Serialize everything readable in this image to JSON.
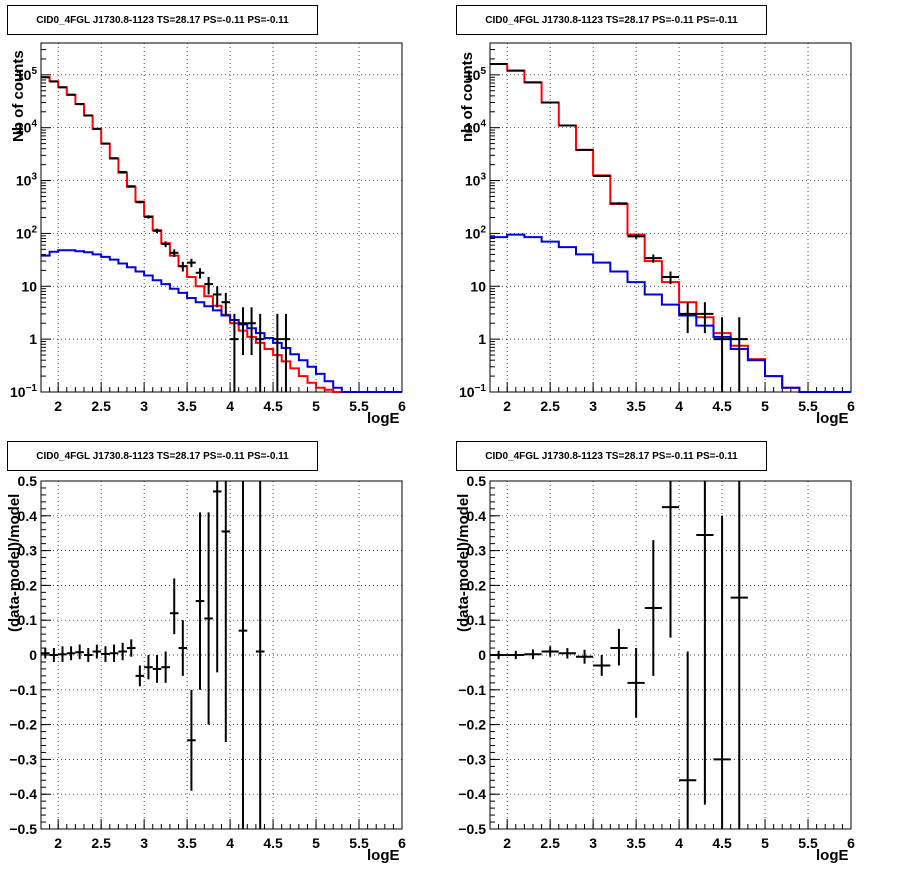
{
  "panels": [
    {
      "title": "CID0_4FGL J1730.8-1123 TS=28.17 PS=-0.11 PS=-0.11",
      "xlabel": "logE",
      "ylabel": "Nb of counts"
    },
    {
      "title": "CID0_4FGL J1730.8-1123 TS=28.17 PS=-0.11 PS=-0.11",
      "xlabel": "logE",
      "ylabel": "nb of counts"
    },
    {
      "title": "CID0_4FGL J1730.8-1123 TS=28.17 PS=-0.11 PS=-0.11",
      "xlabel": "logE",
      "ylabel": "(data-model)/model"
    },
    {
      "title": "CID0_4FGL J1730.8-1123 TS=28.17 PS=-0.11 PS=-0.11",
      "xlabel": "logE",
      "ylabel": "(data-model)/model"
    }
  ],
  "colors": {
    "total_model": "#ff0000",
    "source_model": "#0000dd",
    "data": "#000000"
  },
  "chart_data": [
    {
      "type": "line",
      "title": "CID0_4FGL J1730.8-1123 TS=28.17 PS=-0.11 PS=-0.11",
      "xlabel": "logE",
      "ylabel": "Nb of counts",
      "xlim": [
        1.8,
        6.0
      ],
      "ylim": [
        0.1,
        400000
      ],
      "yscale": "log",
      "grid": true,
      "xticks": [
        "2",
        "2.5",
        "3",
        "3.5",
        "4",
        "4.5",
        "5",
        "5.5",
        "6"
      ],
      "yticks": [
        "10^-1",
        "1",
        "10",
        "10^2",
        "10^3",
        "10^4",
        "10^5"
      ],
      "bin_edges": [
        1.8,
        1.9,
        2.0,
        2.1,
        2.2,
        2.3,
        2.4,
        2.5,
        2.6,
        2.7,
        2.8,
        2.9,
        3.0,
        3.1,
        3.2,
        3.3,
        3.4,
        3.5,
        3.6,
        3.7,
        3.8,
        3.9,
        4.0,
        4.1,
        4.2,
        4.3,
        4.4,
        4.5,
        4.6,
        4.7,
        4.8,
        4.9,
        5.0,
        5.1,
        5.2,
        5.3,
        5.4,
        5.5,
        5.6,
        5.7,
        5.8,
        5.9,
        6.0
      ],
      "series": [
        {
          "style": "step",
          "color": "red",
          "values": [
            90000,
            75000,
            58000,
            42000,
            28000,
            17000,
            9500,
            5000,
            2600,
            1400,
            760,
            400,
            210,
            115,
            65,
            38,
            24,
            15,
            10,
            6.5,
            4.3,
            2.9,
            2.0,
            1.45,
            1.1,
            0.85,
            0.65,
            0.5,
            0.38,
            0.28,
            0.2,
            0.15,
            0.12,
            0.11,
            0.1,
            0.1,
            0.1,
            0.1,
            0.1,
            0.1,
            0.1,
            0.1
          ]
        },
        {
          "style": "step",
          "color": "blue",
          "values": [
            38,
            45,
            48,
            48,
            46,
            44,
            40,
            36,
            32,
            27,
            23,
            19,
            16,
            13,
            11,
            9,
            7.5,
            6,
            5,
            4.2,
            3.5,
            2.8,
            2.3,
            1.9,
            1.6,
            1.3,
            1.05,
            0.85,
            0.68,
            0.52,
            0.4,
            0.3,
            0.22,
            0.16,
            0.12,
            0.1,
            0.1,
            0.1,
            0.1,
            0.1,
            0.1,
            0.1
          ]
        },
        {
          "style": "errorbar",
          "color": "black",
          "points": [
            {
              "x": 1.85,
              "y": 90000,
              "lo": 89500,
              "hi": 90500
            },
            {
              "x": 1.95,
              "y": 75000,
              "lo": 74500,
              "hi": 75500
            },
            {
              "x": 2.05,
              "y": 58000,
              "lo": 57700,
              "hi": 58300
            },
            {
              "x": 2.15,
              "y": 42000,
              "lo": 41700,
              "hi": 42300
            },
            {
              "x": 2.25,
              "y": 28000,
              "lo": 27800,
              "hi": 28200
            },
            {
              "x": 2.35,
              "y": 17000,
              "lo": 16800,
              "hi": 17200
            },
            {
              "x": 2.45,
              "y": 9500,
              "lo": 9400,
              "hi": 9600
            },
            {
              "x": 2.55,
              "y": 5000,
              "lo": 4930,
              "hi": 5070
            },
            {
              "x": 2.65,
              "y": 2650,
              "lo": 2600,
              "hi": 2700
            },
            {
              "x": 2.75,
              "y": 1450,
              "lo": 1410,
              "hi": 1490
            },
            {
              "x": 2.85,
              "y": 780,
              "lo": 750,
              "hi": 810
            },
            {
              "x": 2.95,
              "y": 390,
              "lo": 370,
              "hi": 410
            },
            {
              "x": 3.05,
              "y": 205,
              "lo": 190,
              "hi": 220
            },
            {
              "x": 3.15,
              "y": 112,
              "lo": 101,
              "hi": 123
            },
            {
              "x": 3.25,
              "y": 63,
              "lo": 55,
              "hi": 71
            },
            {
              "x": 3.35,
              "y": 43,
              "lo": 36,
              "hi": 50
            },
            {
              "x": 3.45,
              "y": 24,
              "lo": 19,
              "hi": 29
            },
            {
              "x": 3.55,
              "y": 28,
              "lo": 23,
              "hi": 33
            },
            {
              "x": 3.65,
              "y": 18,
              "lo": 14,
              "hi": 22
            },
            {
              "x": 3.75,
              "y": 11,
              "lo": 7,
              "hi": 15
            },
            {
              "x": 3.85,
              "y": 7,
              "lo": 4,
              "hi": 10
            },
            {
              "x": 3.95,
              "y": 5,
              "lo": 2.8,
              "hi": 7.5
            },
            {
              "x": 4.05,
              "y": 1,
              "lo": 0.1,
              "hi": 3
            },
            {
              "x": 4.15,
              "y": 2,
              "lo": 0.5,
              "hi": 4
            },
            {
              "x": 4.25,
              "y": 2,
              "lo": 0.5,
              "hi": 4
            },
            {
              "x": 4.35,
              "y": 1,
              "lo": 0.1,
              "hi": 3
            },
            {
              "x": 4.55,
              "y": 1,
              "lo": 0.1,
              "hi": 3
            },
            {
              "x": 4.65,
              "y": 1,
              "lo": 0.1,
              "hi": 3
            }
          ]
        }
      ]
    },
    {
      "type": "line",
      "title": "CID0_4FGL J1730.8-1123 TS=28.17 PS=-0.11 PS=-0.11",
      "xlabel": "logE",
      "ylabel": "nb of counts",
      "xlim": [
        1.8,
        6.0
      ],
      "ylim": [
        0.1,
        400000
      ],
      "yscale": "log",
      "grid": true,
      "xticks": [
        "2",
        "2.5",
        "3",
        "3.5",
        "4",
        "4.5",
        "5",
        "5.5",
        "6"
      ],
      "yticks": [
        "10^-1",
        "1",
        "10",
        "10^2",
        "10^3",
        "10^4",
        "10^5"
      ],
      "bin_edges": [
        1.8,
        2.0,
        2.2,
        2.4,
        2.6,
        2.8,
        3.0,
        3.2,
        3.4,
        3.6,
        3.8,
        4.0,
        4.2,
        4.4,
        4.6,
        4.8,
        5.0,
        5.2,
        5.4,
        5.6,
        5.8,
        6.0
      ],
      "series": [
        {
          "style": "step",
          "color": "red",
          "values": [
            160000,
            120000,
            72000,
            30000,
            11000,
            3800,
            1250,
            360,
            95,
            30,
            12,
            5,
            2.6,
            1.3,
            0.75,
            0.42,
            0.2,
            0.12,
            0.1,
            0.1,
            0.1
          ]
        },
        {
          "style": "step",
          "color": "blue",
          "values": [
            85,
            95,
            85,
            70,
            55,
            40,
            28,
            19,
            12,
            7,
            4.5,
            2.8,
            1.8,
            1.1,
            0.65,
            0.4,
            0.2,
            0.12,
            0.1,
            0.1,
            0.1
          ]
        },
        {
          "style": "errorbar",
          "color": "black",
          "points": [
            {
              "x": 1.9,
              "y": 160000,
              "lo": 159600,
              "hi": 160400
            },
            {
              "x": 2.1,
              "y": 120000,
              "lo": 119650,
              "hi": 120350
            },
            {
              "x": 2.3,
              "y": 72000,
              "lo": 71700,
              "hi": 72300
            },
            {
              "x": 2.5,
              "y": 30000,
              "lo": 29800,
              "hi": 30200
            },
            {
              "x": 2.7,
              "y": 11000,
              "lo": 10900,
              "hi": 11100
            },
            {
              "x": 2.9,
              "y": 3800,
              "lo": 3740,
              "hi": 3860
            },
            {
              "x": 3.1,
              "y": 1220,
              "lo": 1185,
              "hi": 1255
            },
            {
              "x": 3.3,
              "y": 370,
              "lo": 350,
              "hi": 390
            },
            {
              "x": 3.5,
              "y": 88,
              "lo": 79,
              "hi": 97
            },
            {
              "x": 3.7,
              "y": 34,
              "lo": 28,
              "hi": 40
            },
            {
              "x": 3.9,
              "y": 15,
              "lo": 11,
              "hi": 19
            },
            {
              "x": 4.1,
              "y": 3,
              "lo": 1.3,
              "hi": 5
            },
            {
              "x": 4.3,
              "y": 3,
              "lo": 1.3,
              "hi": 5
            },
            {
              "x": 4.5,
              "y": 1,
              "lo": 0.1,
              "hi": 2.6
            },
            {
              "x": 4.7,
              "y": 1,
              "lo": 0.1,
              "hi": 2.6
            }
          ]
        }
      ]
    },
    {
      "type": "scatter",
      "title": "CID0_4FGL J1730.8-1123 TS=28.17 PS=-0.11 PS=-0.11",
      "xlabel": "logE",
      "ylabel": "(data-model)/model",
      "xlim": [
        1.8,
        6.0
      ],
      "ylim": [
        -0.5,
        0.5
      ],
      "grid": true,
      "xticks": [
        "2",
        "2.5",
        "3",
        "3.5",
        "4",
        "4.5",
        "5",
        "5.5",
        "6"
      ],
      "yticks": [
        "−0.5",
        "−0.4",
        "−0.3",
        "−0.2",
        "−0.1",
        "0",
        "0.1",
        "0.2",
        "0.3",
        "0.4",
        "0.5"
      ],
      "points": [
        {
          "x": 1.85,
          "y": 0.005,
          "lo": -0.01,
          "hi": 0.02
        },
        {
          "x": 1.95,
          "y": 0.0,
          "lo": -0.02,
          "hi": 0.02
        },
        {
          "x": 2.05,
          "y": 0.002,
          "lo": -0.02,
          "hi": 0.025
        },
        {
          "x": 2.15,
          "y": 0.005,
          "lo": -0.015,
          "hi": 0.025
        },
        {
          "x": 2.25,
          "y": 0.008,
          "lo": -0.012,
          "hi": 0.03
        },
        {
          "x": 2.35,
          "y": 0.0,
          "lo": -0.02,
          "hi": 0.02
        },
        {
          "x": 2.45,
          "y": 0.01,
          "lo": -0.01,
          "hi": 0.03
        },
        {
          "x": 2.55,
          "y": 0.003,
          "lo": -0.02,
          "hi": 0.025
        },
        {
          "x": 2.65,
          "y": 0.005,
          "lo": -0.02,
          "hi": 0.03
        },
        {
          "x": 2.75,
          "y": 0.01,
          "lo": -0.015,
          "hi": 0.035
        },
        {
          "x": 2.85,
          "y": 0.02,
          "lo": -0.005,
          "hi": 0.045
        },
        {
          "x": 2.95,
          "y": -0.06,
          "lo": -0.09,
          "hi": -0.03
        },
        {
          "x": 3.05,
          "y": -0.035,
          "lo": -0.07,
          "hi": 0.0
        },
        {
          "x": 3.15,
          "y": -0.04,
          "lo": -0.08,
          "hi": 0.0
        },
        {
          "x": 3.25,
          "y": -0.035,
          "lo": -0.08,
          "hi": 0.01
        },
        {
          "x": 3.35,
          "y": 0.12,
          "lo": 0.06,
          "hi": 0.22
        },
        {
          "x": 3.45,
          "y": 0.02,
          "lo": -0.06,
          "hi": 0.1
        },
        {
          "x": 3.55,
          "y": -0.245,
          "lo": -0.39,
          "hi": -0.1
        },
        {
          "x": 3.65,
          "y": 0.155,
          "lo": -0.1,
          "hi": 0.41
        },
        {
          "x": 3.75,
          "y": 0.105,
          "lo": -0.2,
          "hi": 0.41
        },
        {
          "x": 3.85,
          "y": 0.47,
          "lo": -0.05,
          "hi": 0.5
        },
        {
          "x": 3.95,
          "y": 0.355,
          "lo": -0.25,
          "hi": 0.5
        },
        {
          "x": 4.15,
          "y": 0.07,
          "lo": -0.5,
          "hi": 0.5
        },
        {
          "x": 4.35,
          "y": 0.01,
          "lo": -0.5,
          "hi": 0.5
        }
      ]
    },
    {
      "type": "scatter",
      "title": "CID0_4FGL J1730.8-1123 TS=28.17 PS=-0.11 PS=-0.11",
      "xlabel": "logE",
      "ylabel": "(data-model)/model",
      "xlim": [
        1.8,
        6.0
      ],
      "ylim": [
        -0.5,
        0.5
      ],
      "grid": true,
      "xticks": [
        "2",
        "2.5",
        "3",
        "3.5",
        "4",
        "4.5",
        "5",
        "5.5",
        "6"
      ],
      "yticks": [
        "−0.5",
        "−0.4",
        "−0.3",
        "−0.2",
        "−0.1",
        "0",
        "0.1",
        "0.2",
        "0.3",
        "0.4",
        "0.5"
      ],
      "points": [
        {
          "x": 1.9,
          "y": 0.0,
          "lo": -0.012,
          "hi": 0.012
        },
        {
          "x": 2.1,
          "y": 0.0,
          "lo": -0.012,
          "hi": 0.012
        },
        {
          "x": 2.3,
          "y": 0.002,
          "lo": -0.012,
          "hi": 0.016
        },
        {
          "x": 2.5,
          "y": 0.01,
          "lo": -0.005,
          "hi": 0.025
        },
        {
          "x": 2.7,
          "y": 0.005,
          "lo": -0.01,
          "hi": 0.02
        },
        {
          "x": 2.9,
          "y": -0.005,
          "lo": -0.025,
          "hi": 0.015
        },
        {
          "x": 3.1,
          "y": -0.03,
          "lo": -0.06,
          "hi": 0.0
        },
        {
          "x": 3.3,
          "y": 0.02,
          "lo": -0.03,
          "hi": 0.075
        },
        {
          "x": 3.5,
          "y": -0.08,
          "lo": -0.18,
          "hi": 0.02
        },
        {
          "x": 3.7,
          "y": 0.135,
          "lo": -0.06,
          "hi": 0.33
        },
        {
          "x": 3.9,
          "y": 0.425,
          "lo": 0.05,
          "hi": 0.5
        },
        {
          "x": 4.1,
          "y": -0.36,
          "lo": -0.5,
          "hi": 0.01
        },
        {
          "x": 4.3,
          "y": 0.345,
          "lo": -0.43,
          "hi": 0.5
        },
        {
          "x": 4.5,
          "y": -0.3,
          "lo": -0.5,
          "hi": 0.4
        },
        {
          "x": 4.7,
          "y": 0.165,
          "lo": -0.5,
          "hi": 0.5
        }
      ]
    }
  ]
}
